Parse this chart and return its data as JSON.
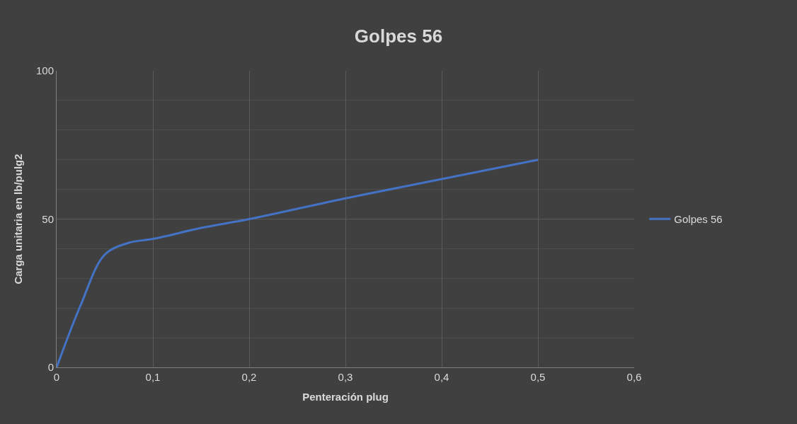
{
  "chart_data": {
    "type": "line",
    "title": "Golpes 56",
    "xlabel": "Penteración plug",
    "ylabel": "Carga unitaria en lb/pulg2",
    "x": [
      0,
      0.025,
      0.05,
      0.075,
      0.1,
      0.15,
      0.2,
      0.3,
      0.4,
      0.5
    ],
    "series": [
      {
        "name": "Golpes 56",
        "color": "#4472c4",
        "values": [
          0,
          21,
          38,
          42,
          43.3,
          47,
          50,
          57,
          63.5,
          70
        ]
      }
    ],
    "xlim": [
      0,
      0.6
    ],
    "xticks": [
      0,
      {
        "value": 0.1,
        "label": "0,1"
      },
      {
        "value": 0.2,
        "label": "0,2"
      },
      {
        "value": 0.3,
        "label": "0,3"
      },
      {
        "value": 0.4,
        "label": "0,4"
      },
      {
        "value": 0.5,
        "label": "0,5"
      },
      {
        "value": 0.6,
        "label": "0,6"
      }
    ],
    "ylim": [
      0,
      100
    ],
    "yticks": [
      0,
      50,
      100
    ],
    "grid": true,
    "legend": "right",
    "marker": "none",
    "line_style": "solid"
  }
}
